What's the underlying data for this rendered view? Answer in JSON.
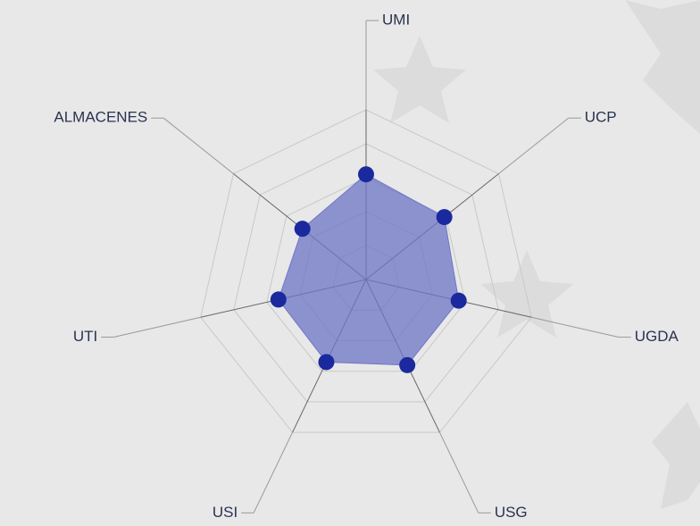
{
  "chart_data": {
    "type": "radar",
    "categories": [
      "UMI",
      "UCP",
      "UGDA",
      "USG",
      "USI",
      "UTI",
      "ALMACENES"
    ],
    "values": [
      62,
      59,
      56,
      56,
      54,
      53,
      48
    ],
    "color": "#1a2a9e",
    "fill_color": "#6e76c6",
    "rlim": [
      0,
      100
    ],
    "rticks": [
      20,
      40,
      60,
      80,
      100
    ],
    "grid": true
  }
}
